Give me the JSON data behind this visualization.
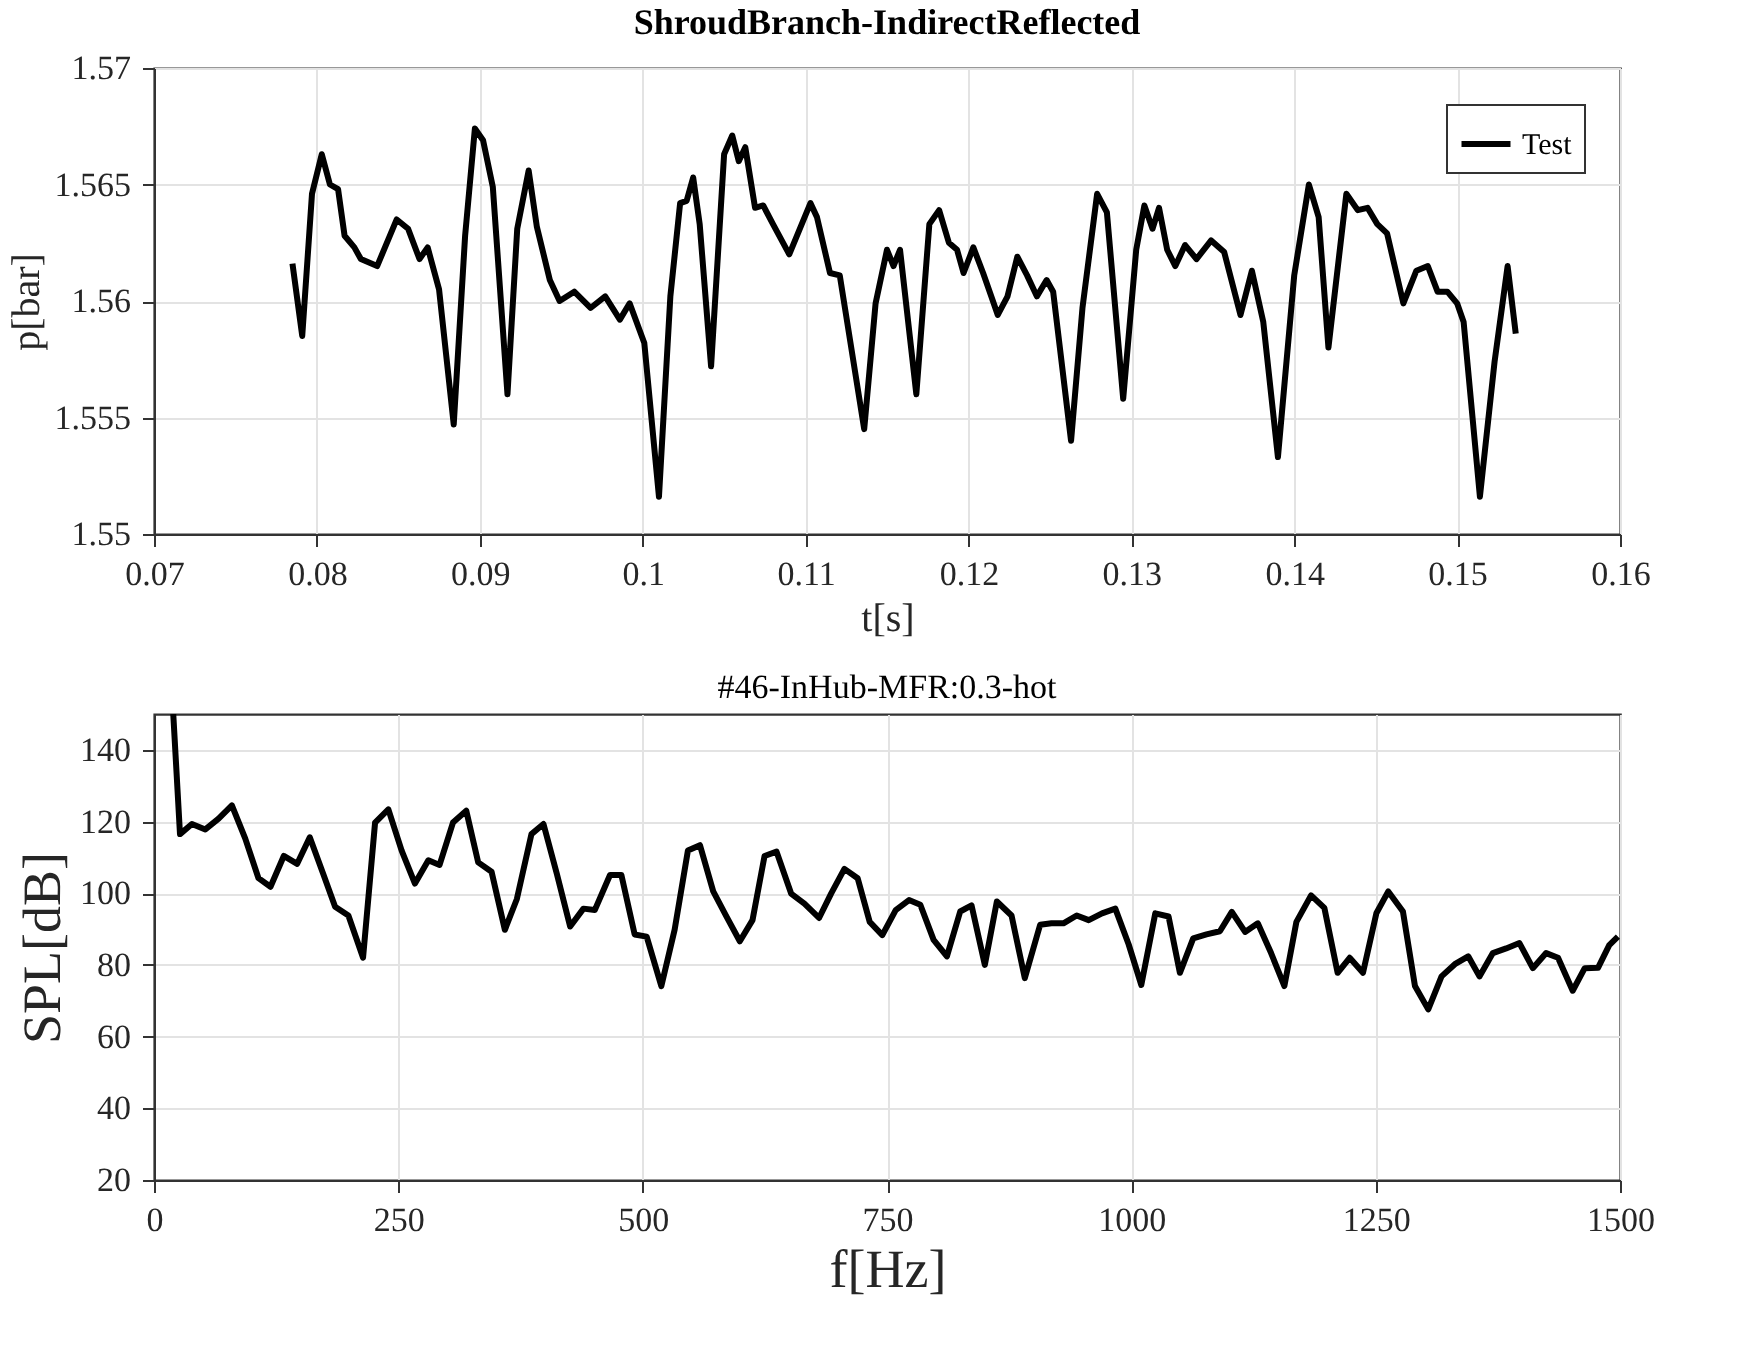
{
  "chart_data": [
    {
      "type": "line",
      "title": "ShroudBranch-IndirectReflected",
      "xlabel": "t[s]",
      "ylabel": "p[bar]",
      "xlim": [
        0.07,
        0.16
      ],
      "xticks": [
        0.07,
        0.08,
        0.09,
        0.1,
        0.11,
        0.12,
        0.13,
        0.14,
        0.15,
        0.16
      ],
      "ylim": [
        1.55,
        1.57
      ],
      "yticks": [
        1.55,
        1.555,
        1.56,
        1.565,
        1.57
      ],
      "grid": true,
      "legend": "top right",
      "series": [
        {
          "name": "Test",
          "color": "#000000",
          "x": [
            0.0785,
            0.0791,
            0.0797,
            0.0803,
            0.0808,
            0.0813,
            0.0817,
            0.0823,
            0.0827,
            0.0837,
            0.0849,
            0.0856,
            0.0863,
            0.0868,
            0.0875,
            0.0884,
            0.0891,
            0.0897,
            0.0902,
            0.0908,
            0.0917,
            0.0923,
            0.093,
            0.0935,
            0.0943,
            0.0949,
            0.0958,
            0.0968,
            0.0977,
            0.0986,
            0.0992,
            0.1001,
            0.101,
            0.1017,
            0.1023,
            0.1027,
            0.1031,
            0.1035,
            0.1042,
            0.105,
            0.1055,
            0.1059,
            0.1063,
            0.1069,
            0.1074,
            0.108,
            0.109,
            0.1103,
            0.1107,
            0.1115,
            0.1121,
            0.1136,
            0.1143,
            0.115,
            0.1154,
            0.1158,
            0.1168,
            0.1176,
            0.1182,
            0.1188,
            0.1193,
            0.1197,
            0.1203,
            0.1209,
            0.1214,
            0.1218,
            0.1224,
            0.123,
            0.1236,
            0.1242,
            0.1248,
            0.1252,
            0.1263,
            0.127,
            0.1279,
            0.1285,
            0.1295,
            0.1303,
            0.1308,
            0.1313,
            0.1317,
            0.1322,
            0.1327,
            0.1333,
            0.134,
            0.1349,
            0.1357,
            0.1367,
            0.1374,
            0.1381,
            0.139,
            0.14,
            0.1409,
            0.1415,
            0.1421,
            0.1432,
            0.1439,
            0.1445,
            0.1451,
            0.1457,
            0.1467,
            0.1475,
            0.1482,
            0.1488,
            0.1494,
            0.15,
            0.1504,
            0.1514,
            0.1523,
            0.1531,
            0.1536
          ],
          "values": [
            1.5616,
            1.5585,
            1.5646,
            1.5663,
            1.565,
            1.5648,
            1.5628,
            1.5623,
            1.5618,
            1.5615,
            1.5635,
            1.5631,
            1.5618,
            1.5623,
            1.5605,
            1.5547,
            1.5628,
            1.5674,
            1.5669,
            1.5649,
            1.556,
            1.5631,
            1.5656,
            1.5632,
            1.5609,
            1.56,
            1.5604,
            1.5597,
            1.5602,
            1.5592,
            1.5599,
            1.5582,
            1.5516,
            1.5602,
            1.5642,
            1.5643,
            1.5653,
            1.5633,
            1.5572,
            1.5663,
            1.5671,
            1.566,
            1.5666,
            1.564,
            1.5641,
            1.5633,
            1.562,
            1.5642,
            1.5636,
            1.5612,
            1.5611,
            1.5545,
            1.5599,
            1.5622,
            1.5615,
            1.5622,
            1.556,
            1.5633,
            1.5639,
            1.5625,
            1.5622,
            1.5612,
            1.5623,
            1.5612,
            1.5602,
            1.5594,
            1.5602,
            1.5619,
            1.5611,
            1.5602,
            1.5609,
            1.5604,
            1.554,
            1.5597,
            1.5646,
            1.5638,
            1.5558,
            1.5622,
            1.5641,
            1.5631,
            1.564,
            1.5622,
            1.5615,
            1.5624,
            1.5618,
            1.5626,
            1.5621,
            1.5594,
            1.5613,
            1.5591,
            1.5533,
            1.5611,
            1.565,
            1.5636,
            1.558,
            1.5646,
            1.5639,
            1.564,
            1.5633,
            1.5629,
            1.5599,
            1.5613,
            1.5615,
            1.5604,
            1.5604,
            1.5599,
            1.5591,
            1.5516,
            1.5574,
            1.5615,
            1.5586
          ]
        }
      ]
    },
    {
      "type": "line",
      "title": "#46-InHub-MFR:0.3-hot",
      "xlabel": "f[Hz]",
      "ylabel": "SPL[dB]",
      "xlim": [
        0,
        1500
      ],
      "xticks": [
        0,
        250,
        500,
        750,
        1000,
        1250,
        1500
      ],
      "ylim": [
        20,
        150
      ],
      "yticks": [
        20,
        40,
        60,
        80,
        100,
        120,
        140
      ],
      "grid": true,
      "series": [
        {
          "color": "#000000",
          "x": [
            19.7,
            26.6,
            38.8,
            52.5,
            66.1,
            79.7,
            93.3,
            106.9,
            119.2,
            132.8,
            146.5,
            159.4,
            173,
            185.3,
            198.9,
            213.9,
            226.2,
            239.8,
            253.4,
            267,
            280.7,
            292.2,
            305.9,
            319.5,
            331.7,
            345.4,
            359,
            371.3,
            386.2,
            398.5,
            412.1,
            425.8,
            439.4,
            451,
            466.6,
            478.2,
            491.8,
            504.1,
            519.1,
            532.7,
            546.3,
            558.6,
            572.2,
            585.8,
            599.4,
            612.4,
            624.7,
            637,
            651.9,
            665.5,
            680.5,
            692.8,
            706.4,
            720,
            732.3,
            745.2,
            758.9,
            772.5,
            784.1,
            797.7,
            811.3,
            824.9,
            836.5,
            850.1,
            862.4,
            877.4,
            891,
            906.7,
            918.3,
            930.5,
            944.1,
            956.4,
            970,
            983.6,
            997.3,
            1010.2,
            1024.5,
            1038.1,
            1049.7,
            1063.3,
            1076.9,
            1090.6,
            1102.8,
            1116.4,
            1129.4,
            1143,
            1156.6,
            1168.9,
            1183.9,
            1197.5,
            1211.1,
            1223.4,
            1237,
            1250.7,
            1262.9,
            1277.9,
            1290.2,
            1303.8,
            1317.4,
            1331,
            1344.7,
            1356.2,
            1369.9,
            1383.5,
            1397.1,
            1410.8,
            1424.4,
            1436.6,
            1451.6,
            1463.9,
            1477.5,
            1489,
            1497.9
          ],
          "values": [
            150,
            116.5,
            119.3,
            117.8,
            120.8,
            124.5,
            115.3,
            104.2,
            101.8,
            110.4,
            108.2,
            115.6,
            105.5,
            96.2,
            93.8,
            82,
            119.7,
            123.4,
            111.9,
            102.7,
            109.2,
            107.9,
            119.7,
            123,
            108.6,
            106,
            89.8,
            98.4,
            116.5,
            119.3,
            105.5,
            90.7,
            95.7,
            95.3,
            105.1,
            105.1,
            88.5,
            87.9,
            74.1,
            89.8,
            111.9,
            113.4,
            100.5,
            93.5,
            86.6,
            92.5,
            110.4,
            111.6,
            99.9,
            97.1,
            93.1,
            99.9,
            106.8,
            104.2,
            92,
            88.3,
            95.3,
            98.1,
            96.8,
            87,
            82.4,
            94.9,
            96.6,
            80,
            97.7,
            93.8,
            76.3,
            91.2,
            91.6,
            91.6,
            93.8,
            92.5,
            94.4,
            95.7,
            85.7,
            74.4,
            94.4,
            93.5,
            77.8,
            87.4,
            88.5,
            89.4,
            94.8,
            89.2,
            91.6,
            83.3,
            74.1,
            92,
            99.4,
            95.9,
            77.8,
            82,
            77.8,
            94.4,
            100.5,
            94.9,
            74.1,
            67.6,
            76.8,
            80.2,
            82.4,
            76.8,
            83.3,
            84.6,
            86.1,
            79.1,
            83.3,
            82,
            72.8,
            79.1,
            79.2,
            85.5,
            87.9
          ]
        }
      ]
    }
  ]
}
